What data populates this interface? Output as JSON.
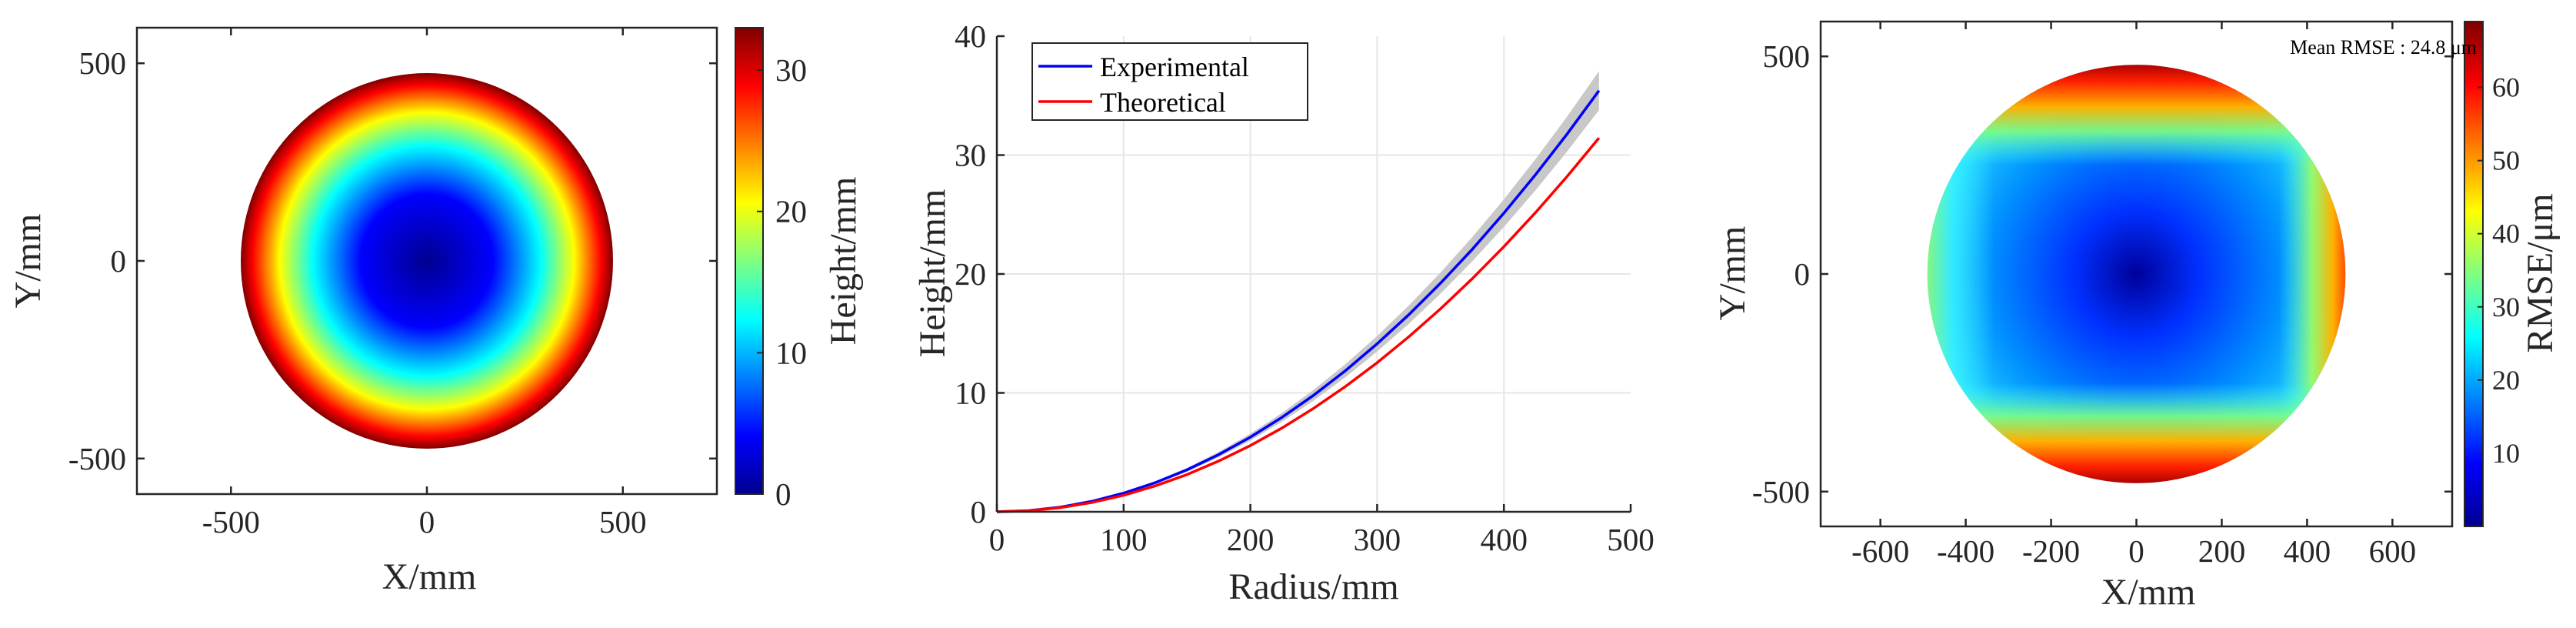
{
  "chart_data": [
    {
      "type": "heatmap",
      "title": "",
      "xlabel": "X/mm",
      "ylabel": "Y/mm",
      "xlim": [
        -740,
        740
      ],
      "ylim": [
        -590,
        590
      ],
      "xticks": [
        -500,
        0,
        500
      ],
      "yticks": [
        -500,
        0,
        500
      ],
      "xtick_labels": [
        "-500",
        "0",
        "500"
      ],
      "ytick_labels": [
        "-500",
        "0",
        "500"
      ],
      "aperture_radius": 475,
      "colorbar": {
        "label": "Height/mm",
        "min": 0,
        "max": 33,
        "ticks": [
          0,
          10,
          20,
          30
        ],
        "tick_labels": [
          "0",
          "10",
          "20",
          "30"
        ],
        "colormap": "jet"
      },
      "surface": {
        "form": "radially symmetric paraboloid",
        "center_value": 0,
        "edge_value": 33
      }
    },
    {
      "type": "line",
      "title": "",
      "xlabel": "Radius/mm",
      "ylabel": "Height/mm",
      "xlim": [
        0,
        500
      ],
      "ylim": [
        0,
        40
      ],
      "xticks": [
        0,
        100,
        200,
        300,
        400,
        500
      ],
      "yticks": [
        0,
        10,
        20,
        30,
        40
      ],
      "xtick_labels": [
        "0",
        "100",
        "200",
        "300",
        "400",
        "500"
      ],
      "ytick_labels": [
        "0",
        "10",
        "20",
        "30",
        "40"
      ],
      "grid": true,
      "legend_position": "top-left",
      "x": [
        0,
        25,
        50,
        75,
        100,
        125,
        150,
        175,
        200,
        225,
        250,
        275,
        300,
        325,
        350,
        375,
        400,
        425,
        450,
        475
      ],
      "series": [
        {
          "name": "Experimental",
          "color": "#0000ff",
          "values": [
            0,
            0.1,
            0.39,
            0.88,
            1.57,
            2.45,
            3.53,
            4.81,
            6.28,
            7.95,
            9.81,
            11.87,
            14.13,
            16.58,
            19.23,
            22.07,
            25.12,
            28.36,
            31.79,
            35.42
          ]
        },
        {
          "name": "Theoretical",
          "color": "#ff0000",
          "values": [
            0,
            0.09,
            0.35,
            0.78,
            1.39,
            2.18,
            3.13,
            4.27,
            5.57,
            7.05,
            8.71,
            10.54,
            12.54,
            14.72,
            17.07,
            19.6,
            22.3,
            25.17,
            28.22,
            31.44
          ]
        }
      ],
      "band": {
        "color": "#c8c8c8",
        "upper": [
          0,
          0.1,
          0.41,
          0.92,
          1.64,
          2.57,
          3.7,
          5.03,
          6.57,
          8.32,
          10.27,
          12.42,
          14.79,
          17.35,
          20.12,
          23.1,
          26.28,
          29.67,
          33.26,
          37.06
        ],
        "lower": [
          0,
          0.1,
          0.37,
          0.84,
          1.5,
          2.34,
          3.37,
          4.58,
          5.99,
          7.58,
          9.36,
          11.32,
          13.48,
          15.81,
          18.34,
          21.06,
          23.96,
          27.05,
          30.32,
          33.78
        ]
      }
    },
    {
      "type": "heatmap",
      "title": "",
      "xlabel": "X/mm",
      "ylabel": "Y/mm",
      "xlim": [
        -740,
        740
      ],
      "ylim": [
        -580,
        580
      ],
      "xticks": [
        -600,
        -400,
        -200,
        0,
        200,
        400,
        600
      ],
      "yticks": [
        -500,
        0,
        500
      ],
      "xtick_labels": [
        "-600",
        "-400",
        "-200",
        "0",
        "200",
        "400",
        "600"
      ],
      "ytick_labels": [
        "-500",
        "0",
        "500"
      ],
      "aperture_radius": 490,
      "annotation": "Mean RMSE : 24.8 μm",
      "colorbar": {
        "label": "RMSE/μm",
        "min": 0,
        "max": 69,
        "ticks": [
          10,
          20,
          30,
          40,
          50,
          60
        ],
        "tick_labels": [
          "10",
          "20",
          "30",
          "40",
          "50",
          "60"
        ],
        "colormap": "jet"
      },
      "surface": {
        "form": "error map, low at center, high at top/bottom and left/right edges",
        "center_value": 3,
        "max_value": 69
      }
    }
  ]
}
